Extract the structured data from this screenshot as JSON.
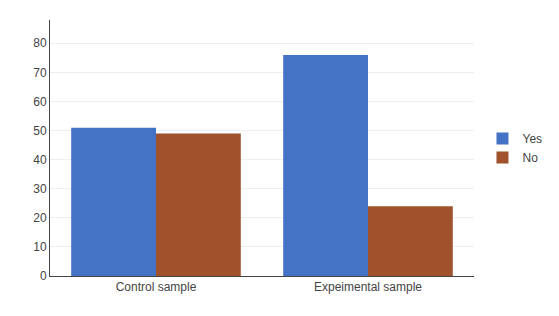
{
  "chart_data": {
    "type": "bar",
    "categories": [
      "Control sample",
      "Expeimental sample"
    ],
    "series": [
      {
        "name": "Yes",
        "color": "#4472C4",
        "values": [
          51,
          76
        ]
      },
      {
        "name": "No",
        "color": "#A0522D",
        "values": [
          49,
          24
        ]
      }
    ],
    "ylim": [
      0,
      88
    ],
    "yticks": [
      0,
      10,
      20,
      30,
      40,
      50,
      60,
      70,
      80
    ],
    "grid": true,
    "legend": "right"
  }
}
